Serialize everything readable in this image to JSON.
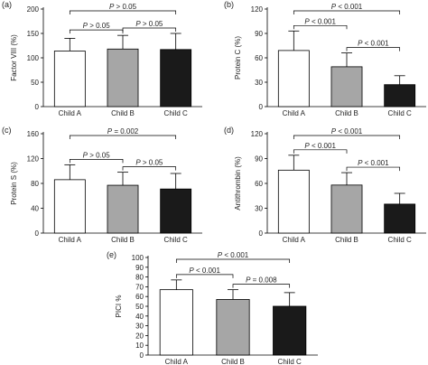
{
  "colors": {
    "Child A": "#ffffff",
    "Child B": "#a6a6a6",
    "Child C": "#1a1a1a",
    "axis": "#000000"
  },
  "chart_data": [
    {
      "type": "bar",
      "panel_label": "(a)",
      "ylabel": "Factor VIII (%)",
      "categories": [
        "Child A",
        "Child B",
        "Child C"
      ],
      "values": [
        114,
        118,
        117
      ],
      "errors": [
        26,
        28,
        33
      ],
      "ylim": [
        0,
        200
      ],
      "yticks": [
        0,
        50,
        100,
        150,
        200
      ],
      "annotations": [
        {
          "from": 0,
          "to": 2,
          "text": "P > 0.05"
        },
        {
          "from": 0,
          "to": 1,
          "text": "P > 0.05"
        },
        {
          "from": 1,
          "to": 2,
          "text": "P > 0.05"
        }
      ]
    },
    {
      "type": "bar",
      "panel_label": "(b)",
      "ylabel": "Protein C (%)",
      "categories": [
        "Child A",
        "Child B",
        "Child C"
      ],
      "values": [
        69,
        49,
        27
      ],
      "errors": [
        24,
        17,
        11
      ],
      "ylim": [
        0,
        120
      ],
      "yticks": [
        0,
        30,
        60,
        90,
        120
      ],
      "annotations": [
        {
          "from": 0,
          "to": 2,
          "text": "P < 0.001"
        },
        {
          "from": 0,
          "to": 1,
          "text": "P < 0.001"
        },
        {
          "from": 1,
          "to": 2,
          "text": "P < 0.001"
        }
      ]
    },
    {
      "type": "bar",
      "panel_label": "(c)",
      "ylabel": "Protein S (%)",
      "categories": [
        "Child A",
        "Child B",
        "Child C"
      ],
      "values": [
        86,
        77,
        71
      ],
      "errors": [
        24,
        21,
        25
      ],
      "ylim": [
        0,
        160
      ],
      "yticks": [
        0,
        40,
        80,
        120,
        160
      ],
      "annotations": [
        {
          "from": 0,
          "to": 2,
          "text": "P = 0.002"
        },
        {
          "from": 0,
          "to": 1,
          "text": "P > 0.05"
        },
        {
          "from": 1,
          "to": 2,
          "text": "P > 0.05"
        }
      ]
    },
    {
      "type": "bar",
      "panel_label": "(d)",
      "ylabel": "Antithrombin (%)",
      "categories": [
        "Child A",
        "Child B",
        "Child C"
      ],
      "values": [
        76,
        58,
        35
      ],
      "errors": [
        18,
        15,
        13
      ],
      "ylim": [
        0,
        120
      ],
      "yticks": [
        0,
        30,
        60,
        90,
        120
      ],
      "annotations": [
        {
          "from": 0,
          "to": 2,
          "text": "P < 0.001"
        },
        {
          "from": 0,
          "to": 1,
          "text": "P < 0.001"
        },
        {
          "from": 1,
          "to": 2,
          "text": "P < 0.001"
        }
      ]
    },
    {
      "type": "bar",
      "panel_label": "(e)",
      "ylabel": "PICI %",
      "categories": [
        "Child A",
        "Child B",
        "Child C"
      ],
      "values": [
        67,
        57,
        50
      ],
      "errors": [
        10,
        10,
        14
      ],
      "ylim": [
        0,
        100
      ],
      "yticks": [
        0,
        10,
        20,
        30,
        40,
        50,
        60,
        70,
        80,
        90,
        100
      ],
      "annotations": [
        {
          "from": 0,
          "to": 2,
          "text": "P < 0.001"
        },
        {
          "from": 0,
          "to": 1,
          "text": "P < 0.001"
        },
        {
          "from": 1,
          "to": 2,
          "text": "P = 0.008"
        }
      ]
    }
  ]
}
